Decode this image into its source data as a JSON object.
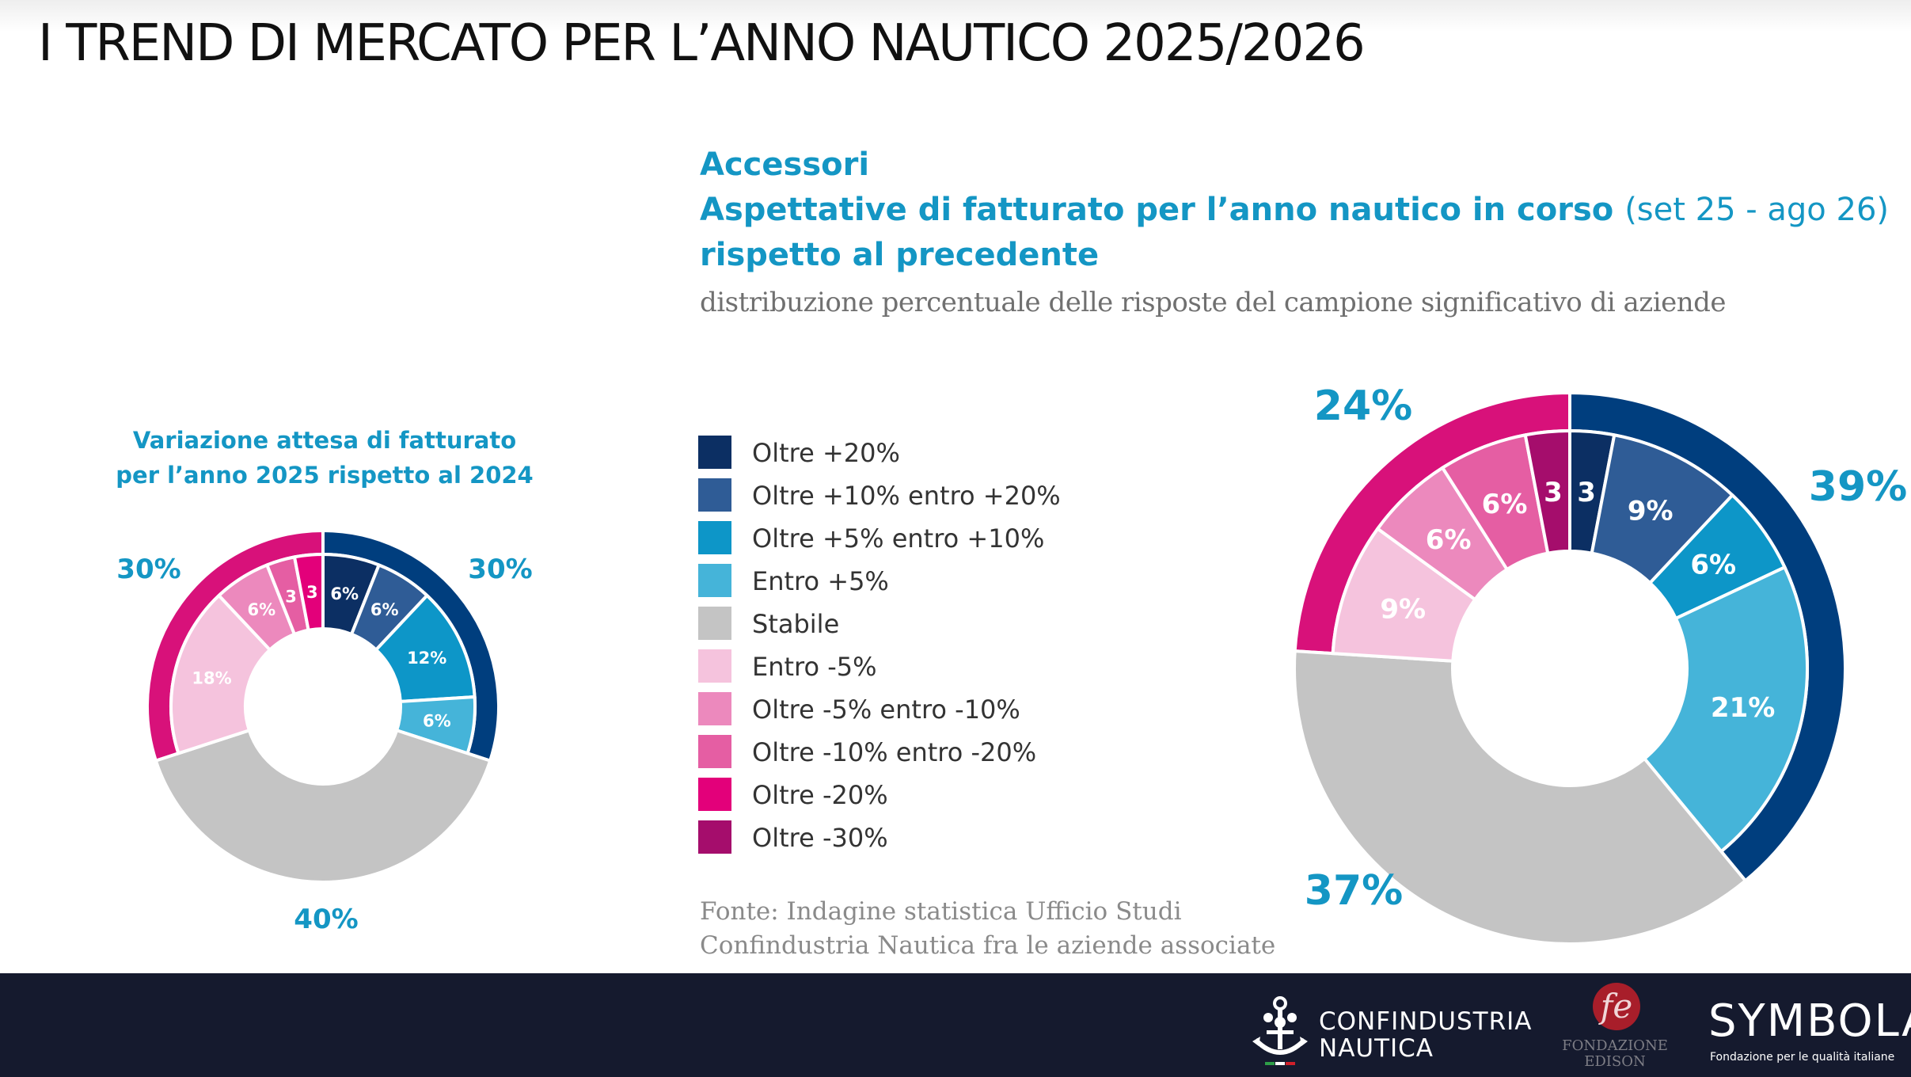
{
  "page_title": "I TREND DI MERCATO PER L’ANNO NAUTICO 2025/2026",
  "main_chart": {
    "title_line1": "Accessori",
    "title_line2_bold": "Aspettative di fatturato per l’anno nautico in corso",
    "title_line2_light": "(set 25 - ago 26)",
    "title_line3": "rispetto al precedente",
    "subtitle": "distribuzione percentuale delle risposte del campione significativo di aziende"
  },
  "small_chart": {
    "title_line1": "Variazione attesa di fatturato",
    "title_line2": "per l’anno 2025 rispetto al 2024"
  },
  "legend": [
    {
      "label": "Oltre +20%",
      "color": "#0c2f63"
    },
    {
      "label": "Oltre +10% entro +20%",
      "color": "#2f5c96"
    },
    {
      "label": "Oltre +5% entro +10%",
      "color": "#0d96c8"
    },
    {
      "label": "Entro +5%",
      "color": "#45b4d9"
    },
    {
      "label": "Stabile",
      "color": "#c4c4c4"
    },
    {
      "label": "Entro -5%",
      "color": "#f5c3dd"
    },
    {
      "label": "Oltre -5% entro -10%",
      "color": "#ec89bd"
    },
    {
      "label": "Oltre -10% entro -20%",
      "color": "#e55ea3"
    },
    {
      "label": "Oltre -20%",
      "color": "#e3007a"
    },
    {
      "label": "Oltre -30%",
      "color": "#a50d6c"
    }
  ],
  "source": {
    "line1": "Fonte: Indagine statistica Ufficio Studi",
    "line2": "Confindustria Nautica fra le aziende associate"
  },
  "footer": {
    "confindustria_line1": "CONFINDUSTRIA",
    "confindustria_line2": "NAUTICA",
    "edison_line1": "FONDAZIONE",
    "edison_line2": "EDISON",
    "symbola": "SYMBOLA",
    "symbola_sub": "Fondazione per le qualità italiane"
  },
  "colors": {
    "accent": "#1496c4",
    "positive_group": "#003e7e",
    "negative_group": "#d8117a",
    "footer_bg": "#151a2e"
  },
  "chart_data": [
    {
      "type": "pie",
      "name": "small",
      "slices": [
        {
          "legend": "Oltre +20%",
          "value": 6,
          "label": "6%"
        },
        {
          "legend": "Oltre +10% entro +20%",
          "value": 6,
          "label": "6%"
        },
        {
          "legend": "Oltre +5% entro +10%",
          "value": 12,
          "label": "12%"
        },
        {
          "legend": "Entro +5%",
          "value": 6,
          "label": "6%"
        },
        {
          "legend": "Stabile",
          "value": 40,
          "label": ""
        },
        {
          "legend": "Entro -5%",
          "value": 18,
          "label": "18%"
        },
        {
          "legend": "Oltre -5% entro -10%",
          "value": 6,
          "label": "6%"
        },
        {
          "legend": "Oltre -10% entro -20%",
          "value": 3,
          "label": "3"
        },
        {
          "legend": "Oltre -20%",
          "value": 3,
          "label": "3"
        }
      ],
      "groups": [
        {
          "label": "30%",
          "value": 30,
          "side": "positive"
        },
        {
          "label": "40%",
          "value": 40,
          "side": "stable"
        },
        {
          "label": "30%",
          "value": 30,
          "side": "negative"
        }
      ]
    },
    {
      "type": "pie",
      "name": "main",
      "slices": [
        {
          "legend": "Oltre +20%",
          "value": 3,
          "label": "3"
        },
        {
          "legend": "Oltre +10% entro +20%",
          "value": 9,
          "label": "9%"
        },
        {
          "legend": "Oltre +5% entro +10%",
          "value": 6,
          "label": "6%"
        },
        {
          "legend": "Entro +5%",
          "value": 21,
          "label": "21%"
        },
        {
          "legend": "Stabile",
          "value": 37,
          "label": ""
        },
        {
          "legend": "Entro -5%",
          "value": 9,
          "label": "9%"
        },
        {
          "legend": "Oltre -5% entro -10%",
          "value": 6,
          "label": "6%"
        },
        {
          "legend": "Oltre -10% entro -20%",
          "value": 6,
          "label": "6%"
        },
        {
          "legend": "Oltre -30%",
          "value": 3,
          "label": "3"
        }
      ],
      "groups": [
        {
          "label": "39%",
          "value": 39,
          "side": "positive"
        },
        {
          "label": "37%",
          "value": 37,
          "side": "stable"
        },
        {
          "label": "24%",
          "value": 24,
          "side": "negative"
        }
      ]
    }
  ]
}
